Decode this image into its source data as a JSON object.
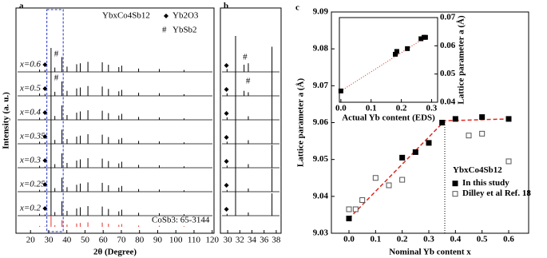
{
  "chart_data": [
    {
      "type": "stick",
      "title": "a",
      "xlabel": "2θ (Degree)",
      "ylabel": "Intensity (a. u.)",
      "compound": "YbxCo4Sb12",
      "impurity_1": "Yb2O3",
      "impurity_2": "YbSb2",
      "hash_label": "#",
      "reference_label": "CoSb3: 65-3144",
      "reference_color": "#e8534a",
      "xlim": [
        12,
        121
      ],
      "xticks": [
        20,
        30,
        40,
        50,
        60,
        70,
        80,
        90,
        100,
        110,
        120
      ],
      "x": [
        25.0,
        28.0,
        31.3,
        33.4,
        37.3,
        40.1,
        45.4,
        47.4,
        51.6,
        59.5,
        62.9,
        68.6,
        70.2,
        79.5,
        90.9,
        104.5
      ],
      "reference_values": [
        8,
        5,
        100,
        15,
        60,
        20,
        30,
        35,
        40,
        38,
        28,
        18,
        25,
        12,
        10,
        6
      ],
      "series": [
        {
          "name": "x=0.6",
          "color": "#000000",
          "values": [
            10,
            8,
            100,
            18,
            62,
            22,
            32,
            36,
            42,
            40,
            30,
            20,
            26,
            14,
            12,
            8
          ]
        },
        {
          "name": "x=0.5",
          "color": "#000000",
          "values": [
            10,
            8,
            100,
            17,
            60,
            21,
            31,
            35,
            41,
            39,
            29,
            19,
            25,
            13,
            11,
            7
          ]
        },
        {
          "name": "x=0.4",
          "color": "#000000",
          "values": [
            9,
            6,
            100,
            16,
            60,
            20,
            30,
            35,
            40,
            38,
            28,
            18,
            25,
            12,
            10,
            6
          ]
        },
        {
          "name": "x=0.35",
          "color": "#000000",
          "values": [
            9,
            6,
            100,
            16,
            59,
            20,
            30,
            34,
            40,
            38,
            28,
            18,
            24,
            12,
            10,
            6
          ]
        },
        {
          "name": "x=0.3",
          "color": "#000000",
          "values": [
            8,
            5,
            100,
            15,
            60,
            20,
            30,
            35,
            40,
            38,
            28,
            18,
            25,
            12,
            10,
            6
          ]
        },
        {
          "name": "x=0.25",
          "color": "#000000",
          "values": [
            8,
            5,
            100,
            15,
            58,
            19,
            29,
            34,
            39,
            37,
            27,
            17,
            24,
            11,
            9,
            6
          ]
        },
        {
          "name": "x=0.2",
          "color": "#000000",
          "values": [
            8,
            5,
            100,
            15,
            60,
            20,
            30,
            35,
            40,
            38,
            28,
            18,
            25,
            12,
            10,
            6
          ]
        }
      ]
    },
    {
      "type": "stick",
      "title": "b",
      "xlim": [
        28.8,
        38.8
      ],
      "xticks": [
        30,
        32,
        34,
        36,
        38
      ],
      "x": [
        29.9,
        31.3,
        32.7,
        33.4,
        37.3
      ],
      "series": [
        {
          "name": "x=0.6",
          "color": "#000000",
          "values": [
            8,
            100,
            20,
            24,
            70
          ]
        },
        {
          "name": "x=0.5",
          "color": "#000000",
          "values": [
            7,
            100,
            14,
            10,
            68
          ]
        },
        {
          "name": "x=0.4",
          "color": "#000000",
          "values": [
            7,
            100,
            0,
            10,
            66
          ]
        },
        {
          "name": "x=0.35",
          "color": "#000000",
          "values": [
            6,
            100,
            0,
            10,
            66
          ]
        },
        {
          "name": "x=0.3",
          "color": "#000000",
          "values": [
            6,
            100,
            0,
            10,
            64
          ]
        },
        {
          "name": "x=0.25",
          "color": "#000000",
          "values": [
            5,
            100,
            0,
            9,
            64
          ]
        },
        {
          "name": "x=0.2",
          "color": "#000000",
          "values": [
            5,
            100,
            0,
            9,
            62
          ]
        }
      ]
    },
    {
      "type": "scatter",
      "title": "c",
      "xlabel": "Nominal Yb content x",
      "ylabel": "Lattice parameter a (Å)",
      "legend_title": "YbxCo4Sb12",
      "xlim": [
        -0.066,
        0.675
      ],
      "xticks": [
        {
          "value": 0,
          "label": "0.0"
        },
        0.1,
        0.2,
        0.3,
        0.4,
        0.5,
        0.6
      ],
      "ylim": [
        9.03,
        9.09
      ],
      "yticks": [
        9.03,
        9.04,
        9.05,
        9.06,
        9.07,
        9.08,
        9.09
      ],
      "series": [
        {
          "name": "In this study",
          "color": "#000000",
          "filled": true,
          "x": [
            0,
            0.2,
            0.25,
            0.3,
            0.35,
            0.4,
            0.5,
            0.6
          ],
          "values": [
            9.034,
            9.0505,
            9.052,
            9.0545,
            9.06,
            9.061,
            9.0615,
            9.061
          ]
        },
        {
          "name": "Dilley et al Ref. 18",
          "color": "#555555",
          "filled": false,
          "x": [
            0,
            0.025,
            0.05,
            0.1,
            0.15,
            0.2,
            0.45,
            0.5,
            0.6
          ],
          "values": [
            9.0365,
            9.0365,
            9.039,
            9.045,
            9.043,
            9.0445,
            9.0565,
            9.057,
            9.0495
          ]
        }
      ],
      "fit": {
        "color": "#e0261c",
        "x": [
          0,
          0.36,
          0.6
        ],
        "values": [
          9.034,
          9.0605,
          9.061
        ]
      },
      "vline": 0.36
    },
    {
      "type": "scatter",
      "xlabel": "Actual Yb content (EDS)",
      "ylabel": "Lattice parameter a (Å)",
      "xlim": [
        -0.005,
        0.32
      ],
      "xticks": [
        {
          "value": 0,
          "label": "0.0"
        },
        0.1,
        0.2,
        0.3
      ],
      "ylim": [
        0.04,
        0.07
      ],
      "yticks": [
        0.04,
        0.05,
        0.06,
        0.07
      ],
      "series": [
        {
          "color": "#000000",
          "filled": true,
          "x": [
            0,
            0.18,
            0.185,
            0.22,
            0.265,
            0.275,
            0.28
          ],
          "values": [
            0.044,
            0.057,
            0.058,
            0.059,
            0.0625,
            0.063,
            0.063
          ]
        }
      ],
      "fit": {
        "color": "#e0261c",
        "x": [
          0,
          0.28
        ],
        "values": [
          0.044,
          0.063
        ]
      }
    }
  ]
}
